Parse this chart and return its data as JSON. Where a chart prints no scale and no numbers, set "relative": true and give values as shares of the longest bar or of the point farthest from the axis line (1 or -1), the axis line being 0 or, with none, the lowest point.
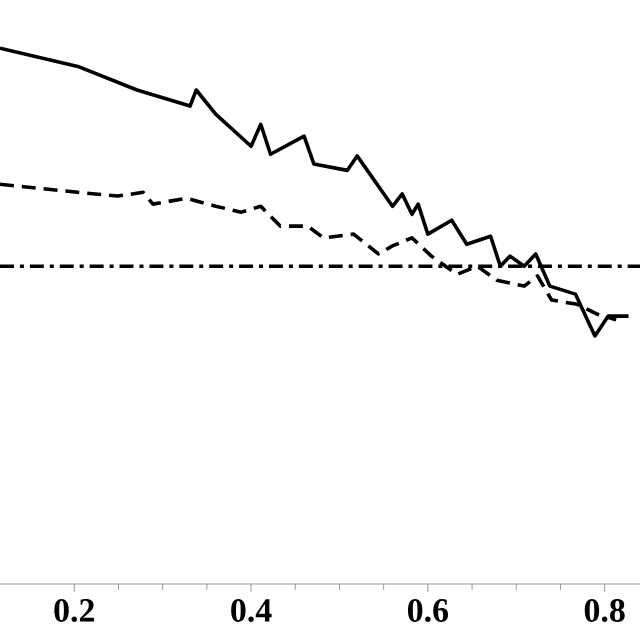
{
  "chart_data": {
    "type": "line",
    "relative": true,
    "xlim": [
      0.116,
      0.84
    ],
    "xticks": [
      0.2,
      0.4,
      0.6,
      0.8
    ],
    "marker": "none",
    "series": [
      {
        "color": "#000000",
        "line_style": "solid",
        "x": [
          0.116,
          0.204,
          0.271,
          0.331,
          0.338,
          0.36,
          0.4,
          0.411,
          0.422,
          0.46,
          0.471,
          0.509,
          0.52,
          0.56,
          0.571,
          0.582,
          0.589,
          0.6,
          0.627,
          0.644,
          0.671,
          0.682,
          0.693,
          0.709,
          0.722,
          0.738,
          0.767,
          0.789,
          0.804,
          0.827
        ],
        "values": [
          1.0,
          0.966,
          0.922,
          0.892,
          0.922,
          0.877,
          0.817,
          0.858,
          0.802,
          0.836,
          0.784,
          0.772,
          0.799,
          0.705,
          0.728,
          0.69,
          0.709,
          0.653,
          0.679,
          0.634,
          0.649,
          0.593,
          0.612,
          0.593,
          0.616,
          0.556,
          0.541,
          0.463,
          0.5,
          0.5
        ]
      },
      {
        "color": "#000000",
        "line_style": "dashed",
        "x": [
          0.116,
          0.204,
          0.249,
          0.278,
          0.289,
          0.327,
          0.36,
          0.389,
          0.411,
          0.433,
          0.464,
          0.482,
          0.516,
          0.544,
          0.56,
          0.582,
          0.604,
          0.633,
          0.656,
          0.678,
          0.709,
          0.724,
          0.74,
          0.769,
          0.791,
          0.813
        ],
        "values": [
          0.746,
          0.731,
          0.724,
          0.731,
          0.709,
          0.72,
          0.705,
          0.694,
          0.705,
          0.668,
          0.668,
          0.646,
          0.653,
          0.616,
          0.631,
          0.646,
          0.612,
          0.578,
          0.593,
          0.567,
          0.556,
          0.575,
          0.53,
          0.522,
          0.504,
          0.493
        ]
      },
      {
        "color": "#000000",
        "line_style": "dashdot",
        "x": [
          0.116,
          0.84
        ],
        "values": [
          0.593,
          0.593
        ]
      }
    ]
  }
}
